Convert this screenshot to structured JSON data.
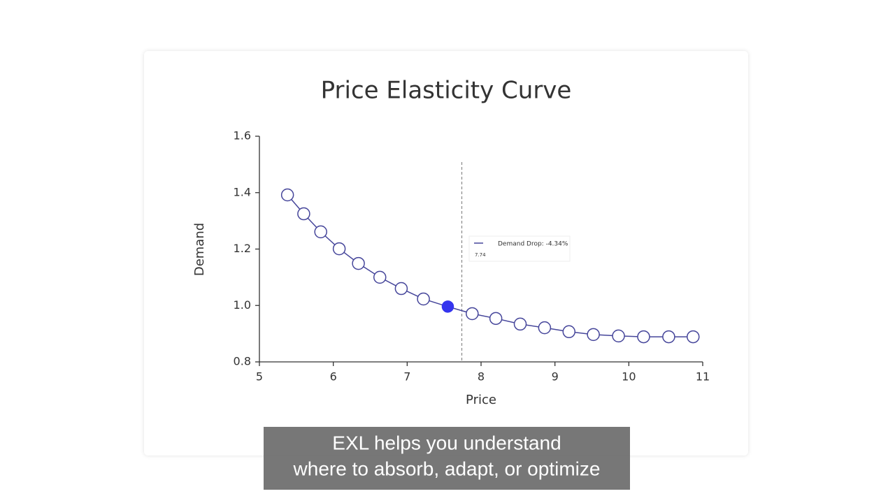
{
  "chart_data": {
    "type": "line",
    "title": "Price Elasticity Curve",
    "x_label": "Price",
    "y_label": "Demand",
    "x": [
      5.38,
      5.6,
      5.83,
      6.08,
      6.34,
      6.63,
      6.92,
      7.22,
      7.55,
      7.88,
      8.2,
      8.53,
      8.86,
      9.19,
      9.52,
      9.86,
      10.2,
      10.54,
      10.87
    ],
    "series": [
      {
        "name": "Demand Drop: -4.34%",
        "color": "#45459a",
        "values": [
          1.392,
          1.325,
          1.261,
          1.201,
          1.149,
          1.1,
          1.06,
          1.023,
          0.996,
          0.971,
          0.954,
          0.934,
          0.921,
          0.907,
          0.897,
          0.892,
          0.889,
          0.889,
          0.889
        ]
      }
    ],
    "highlight_point": 8,
    "highlight_color": "#3434ee",
    "marker_x": 7.74,
    "xlim": [
      5,
      11
    ],
    "xticks": [
      5,
      6,
      7,
      8,
      9,
      10,
      11
    ],
    "ylim": [
      0.8,
      1.6
    ],
    "yticks": [
      0.8,
      {
        "value": 1.0,
        "label": "1.0"
      },
      1.2,
      1.4,
      1.6
    ]
  },
  "caption": {
    "lines": [
      "EXL helps you understand",
      "where to absorb, adapt, or optimize"
    ]
  }
}
